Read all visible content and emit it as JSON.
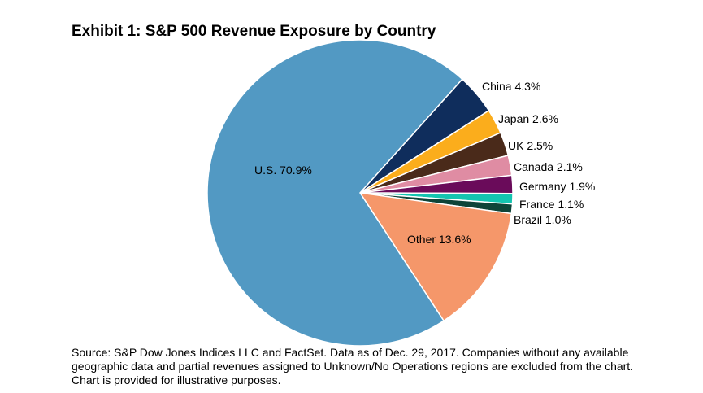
{
  "title": "Exhibit 1: S&P 500 Revenue Exposure by Country",
  "source_note": "Source: S&P Dow Jones Indices LLC and FactSet.  Data as of Dec. 29, 2017. Companies without any available geographic data and partial revenues assigned to Unknown/No Operations regions are excluded from the chart.  Chart is provided for illustrative purposes.",
  "chart_data": {
    "type": "pie",
    "title": "Exhibit 1: S&P 500 Revenue Exposure by Country",
    "slices": [
      {
        "label": "China",
        "value": 4.3,
        "display": "China 4.3%",
        "color": "#0f2d5c"
      },
      {
        "label": "Japan",
        "value": 2.6,
        "display": "Japan 2.6%",
        "color": "#fbad1c"
      },
      {
        "label": "UK",
        "value": 2.5,
        "display": "UK 2.5%",
        "color": "#4a2a1a"
      },
      {
        "label": "Canada",
        "value": 2.1,
        "display": "Canada 2.1%",
        "color": "#df8ca3"
      },
      {
        "label": "Germany",
        "value": 1.9,
        "display": "Germany 1.9%",
        "color": "#6a0b5a"
      },
      {
        "label": "France",
        "value": 1.1,
        "display": "France 1.1%",
        "color": "#14c4b0"
      },
      {
        "label": "Brazil",
        "value": 1.0,
        "display": "Brazil 1.0%",
        "color": "#0e4438"
      },
      {
        "label": "Other",
        "value": 13.6,
        "display": "Other 13.6%",
        "color": "#f5976a"
      },
      {
        "label": "U.S.",
        "value": 70.9,
        "display": "U.S. 70.9%",
        "color": "#5299c3"
      }
    ]
  }
}
